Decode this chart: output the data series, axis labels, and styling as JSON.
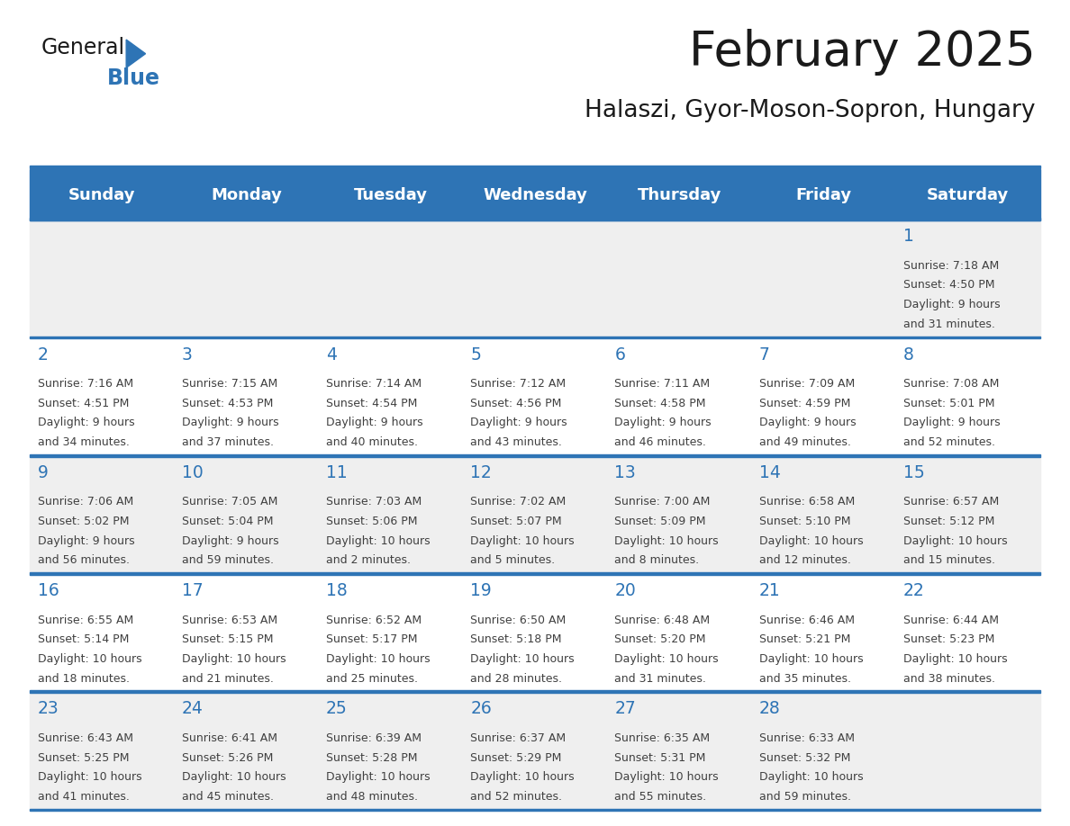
{
  "title": "February 2025",
  "subtitle": "Halaszi, Gyor-Moson-Sopron, Hungary",
  "days_of_week": [
    "Sunday",
    "Monday",
    "Tuesday",
    "Wednesday",
    "Thursday",
    "Friday",
    "Saturday"
  ],
  "header_bg": "#2E74B5",
  "header_text": "#FFFFFF",
  "row_bg_colors": [
    "#EFEFEF",
    "#FFFFFF",
    "#EFEFEF",
    "#FFFFFF",
    "#EFEFEF"
  ],
  "separator_color": "#2E74B5",
  "day_number_color": "#2E74B5",
  "info_text_color": "#404040",
  "title_color": "#1a1a1a",
  "subtitle_color": "#1a1a1a",
  "logo_general_color": "#1a1a1a",
  "logo_blue_color": "#2E74B5",
  "calendar_data": [
    {
      "day": 1,
      "col": 6,
      "row": 0,
      "sunrise": "7:18 AM",
      "sunset": "4:50 PM",
      "daylight": "9 hours and 31 minutes."
    },
    {
      "day": 2,
      "col": 0,
      "row": 1,
      "sunrise": "7:16 AM",
      "sunset": "4:51 PM",
      "daylight": "9 hours and 34 minutes."
    },
    {
      "day": 3,
      "col": 1,
      "row": 1,
      "sunrise": "7:15 AM",
      "sunset": "4:53 PM",
      "daylight": "9 hours and 37 minutes."
    },
    {
      "day": 4,
      "col": 2,
      "row": 1,
      "sunrise": "7:14 AM",
      "sunset": "4:54 PM",
      "daylight": "9 hours and 40 minutes."
    },
    {
      "day": 5,
      "col": 3,
      "row": 1,
      "sunrise": "7:12 AM",
      "sunset": "4:56 PM",
      "daylight": "9 hours and 43 minutes."
    },
    {
      "day": 6,
      "col": 4,
      "row": 1,
      "sunrise": "7:11 AM",
      "sunset": "4:58 PM",
      "daylight": "9 hours and 46 minutes."
    },
    {
      "day": 7,
      "col": 5,
      "row": 1,
      "sunrise": "7:09 AM",
      "sunset": "4:59 PM",
      "daylight": "9 hours and 49 minutes."
    },
    {
      "day": 8,
      "col": 6,
      "row": 1,
      "sunrise": "7:08 AM",
      "sunset": "5:01 PM",
      "daylight": "9 hours and 52 minutes."
    },
    {
      "day": 9,
      "col": 0,
      "row": 2,
      "sunrise": "7:06 AM",
      "sunset": "5:02 PM",
      "daylight": "9 hours and 56 minutes."
    },
    {
      "day": 10,
      "col": 1,
      "row": 2,
      "sunrise": "7:05 AM",
      "sunset": "5:04 PM",
      "daylight": "9 hours and 59 minutes."
    },
    {
      "day": 11,
      "col": 2,
      "row": 2,
      "sunrise": "7:03 AM",
      "sunset": "5:06 PM",
      "daylight": "10 hours and 2 minutes."
    },
    {
      "day": 12,
      "col": 3,
      "row": 2,
      "sunrise": "7:02 AM",
      "sunset": "5:07 PM",
      "daylight": "10 hours and 5 minutes."
    },
    {
      "day": 13,
      "col": 4,
      "row": 2,
      "sunrise": "7:00 AM",
      "sunset": "5:09 PM",
      "daylight": "10 hours and 8 minutes."
    },
    {
      "day": 14,
      "col": 5,
      "row": 2,
      "sunrise": "6:58 AM",
      "sunset": "5:10 PM",
      "daylight": "10 hours and 12 minutes."
    },
    {
      "day": 15,
      "col": 6,
      "row": 2,
      "sunrise": "6:57 AM",
      "sunset": "5:12 PM",
      "daylight": "10 hours and 15 minutes."
    },
    {
      "day": 16,
      "col": 0,
      "row": 3,
      "sunrise": "6:55 AM",
      "sunset": "5:14 PM",
      "daylight": "10 hours and 18 minutes."
    },
    {
      "day": 17,
      "col": 1,
      "row": 3,
      "sunrise": "6:53 AM",
      "sunset": "5:15 PM",
      "daylight": "10 hours and 21 minutes."
    },
    {
      "day": 18,
      "col": 2,
      "row": 3,
      "sunrise": "6:52 AM",
      "sunset": "5:17 PM",
      "daylight": "10 hours and 25 minutes."
    },
    {
      "day": 19,
      "col": 3,
      "row": 3,
      "sunrise": "6:50 AM",
      "sunset": "5:18 PM",
      "daylight": "10 hours and 28 minutes."
    },
    {
      "day": 20,
      "col": 4,
      "row": 3,
      "sunrise": "6:48 AM",
      "sunset": "5:20 PM",
      "daylight": "10 hours and 31 minutes."
    },
    {
      "day": 21,
      "col": 5,
      "row": 3,
      "sunrise": "6:46 AM",
      "sunset": "5:21 PM",
      "daylight": "10 hours and 35 minutes."
    },
    {
      "day": 22,
      "col": 6,
      "row": 3,
      "sunrise": "6:44 AM",
      "sunset": "5:23 PM",
      "daylight": "10 hours and 38 minutes."
    },
    {
      "day": 23,
      "col": 0,
      "row": 4,
      "sunrise": "6:43 AM",
      "sunset": "5:25 PM",
      "daylight": "10 hours and 41 minutes."
    },
    {
      "day": 24,
      "col": 1,
      "row": 4,
      "sunrise": "6:41 AM",
      "sunset": "5:26 PM",
      "daylight": "10 hours and 45 minutes."
    },
    {
      "day": 25,
      "col": 2,
      "row": 4,
      "sunrise": "6:39 AM",
      "sunset": "5:28 PM",
      "daylight": "10 hours and 48 minutes."
    },
    {
      "day": 26,
      "col": 3,
      "row": 4,
      "sunrise": "6:37 AM",
      "sunset": "5:29 PM",
      "daylight": "10 hours and 52 minutes."
    },
    {
      "day": 27,
      "col": 4,
      "row": 4,
      "sunrise": "6:35 AM",
      "sunset": "5:31 PM",
      "daylight": "10 hours and 55 minutes."
    },
    {
      "day": 28,
      "col": 5,
      "row": 4,
      "sunrise": "6:33 AM",
      "sunset": "5:32 PM",
      "daylight": "10 hours and 59 minutes."
    }
  ]
}
